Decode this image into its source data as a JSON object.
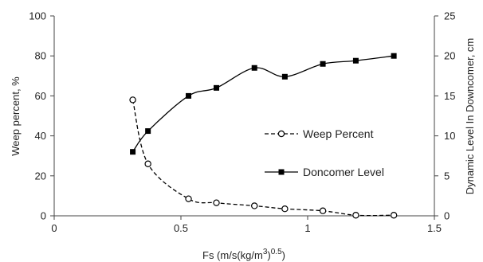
{
  "chart_data": {
    "type": "line",
    "xlabel": "Fs (m/s(kg/m",
    "xlabel_sup1": "3",
    "xlabel_mid": ")",
    "xlabel_sup2": "0.5",
    "xlabel_end": ")",
    "ylabel_left": "Weep percent, %",
    "ylabel_right": "Dynamic Level In Downcomer, cm",
    "xlim": [
      0,
      1.5
    ],
    "ylim_left": [
      0,
      100
    ],
    "ylim_right": [
      0,
      25
    ],
    "x_ticks": [
      "0",
      "0.5",
      "1",
      "1.5"
    ],
    "y_left_ticks": [
      "0",
      "20",
      "40",
      "60",
      "80",
      "100"
    ],
    "y_right_ticks": [
      "0",
      "5",
      "10",
      "15",
      "20",
      "25"
    ],
    "legend_position": "center-right",
    "series": [
      {
        "name": "Weep Percent",
        "axis": "left",
        "marker": "open-circle",
        "line": "dashed",
        "color": "#000000",
        "x": [
          0.31,
          0.37,
          0.53,
          0.64,
          0.79,
          0.91,
          1.06,
          1.19,
          1.34
        ],
        "y": [
          58,
          26,
          8.5,
          6.5,
          5,
          3.5,
          2.5,
          0.3,
          0.3
        ]
      },
      {
        "name": "Doncomer Level",
        "axis": "right",
        "marker": "filled-square",
        "line": "solid",
        "color": "#000000",
        "x": [
          0.31,
          0.37,
          0.53,
          0.64,
          0.79,
          0.91,
          1.06,
          1.19,
          1.34
        ],
        "y": [
          8.0,
          10.6,
          15.0,
          16.0,
          18.5,
          17.4,
          19.0,
          19.4,
          20.0
        ]
      }
    ]
  }
}
